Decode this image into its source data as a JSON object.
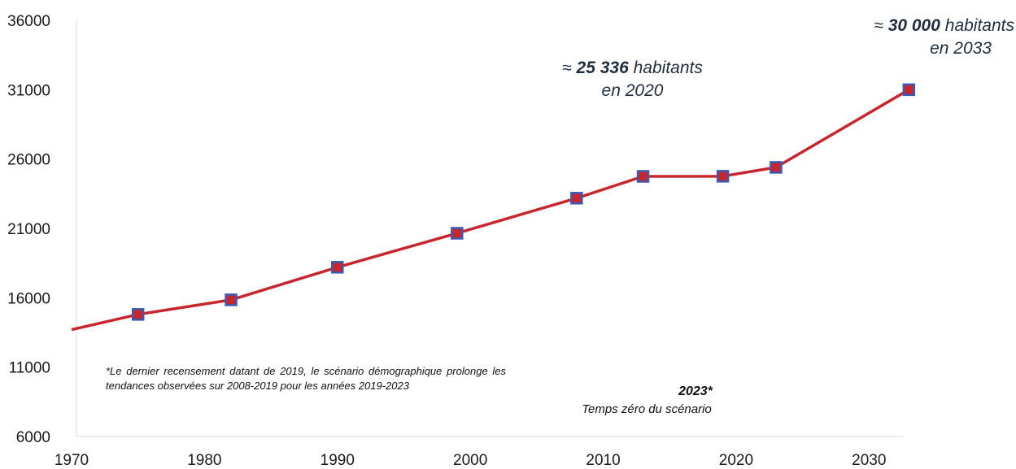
{
  "chart_data": {
    "type": "line",
    "x": [
      1970,
      1975,
      1982,
      1990,
      1999,
      2008,
      2013,
      2019,
      2023,
      2033
    ],
    "series": [
      {
        "values": [
          13700,
          14800,
          15850,
          18200,
          20650,
          23180,
          24750,
          24760,
          25400,
          31000
        ],
        "color": "#c8262c",
        "marker_color": "#3a5bb5",
        "markers": [
          false,
          true,
          true,
          true,
          true,
          true,
          true,
          true,
          true,
          true
        ]
      }
    ],
    "xlim": [
      1970,
      2035
    ],
    "ylim": [
      6000,
      36000
    ],
    "x_ticks": [
      "1970",
      "1980",
      "1990",
      "2000",
      "2010",
      "2020",
      "2030"
    ],
    "y_ticks": [
      "6000",
      "11000",
      "16000",
      "21000",
      "26000",
      "31000",
      "36000"
    ],
    "grid": false,
    "legend": "none"
  },
  "annotations": {
    "a2020": {
      "approx": "≈",
      "value": "25 336",
      "unit": "habitants",
      "line2": "en 2020"
    },
    "a2033": {
      "approx": "≈",
      "value": "30 000",
      "unit": "habitants",
      "line2": "en 2033"
    },
    "footnote": "*Le dernier recensement datant de 2019, le scénario démographique prolonge les tendances observées sur 2008-2019 pour les années 2019-2023",
    "t0_year": "2023*",
    "t0_caption": "Temps zéro du scénario"
  }
}
